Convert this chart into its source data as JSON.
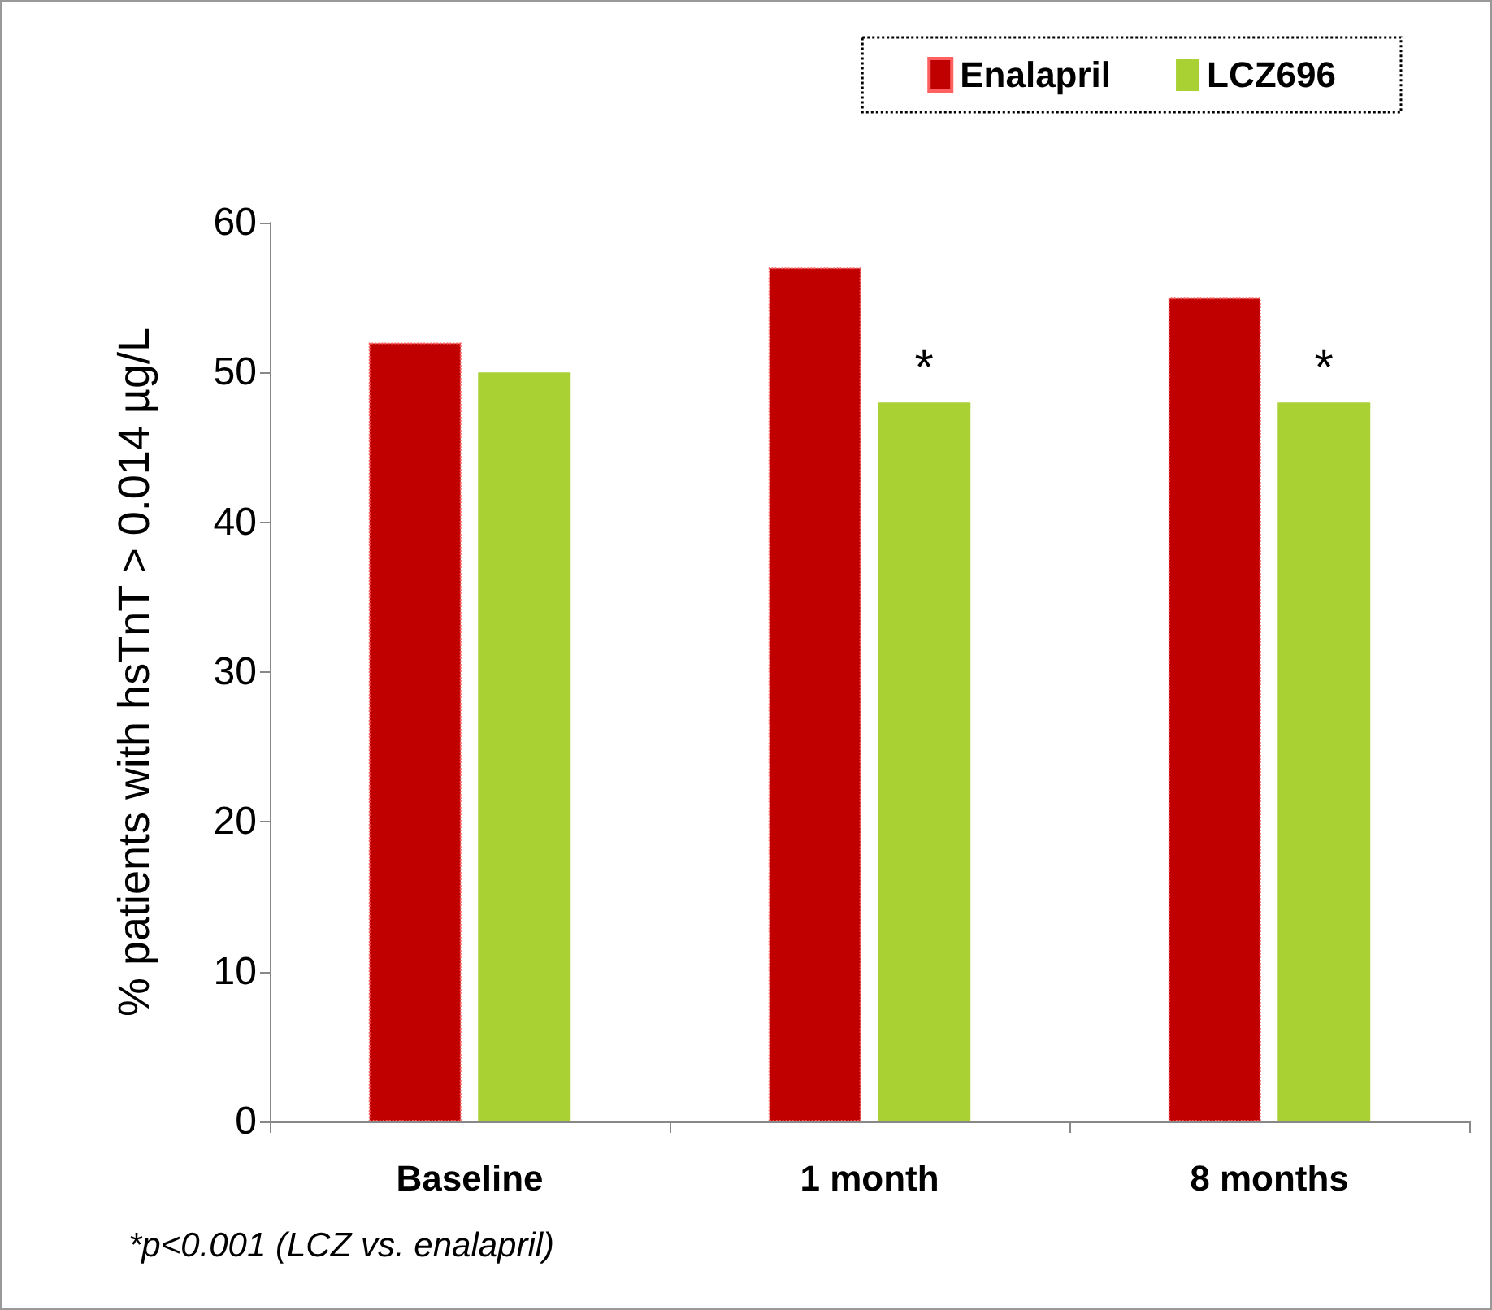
{
  "chart_data": {
    "type": "bar",
    "ylabel": "% patients with hsTnT > 0.014 µg/L",
    "categories": [
      "Baseline",
      "1 month",
      "8 months"
    ],
    "series": [
      {
        "name": "Enalapril",
        "color": "#c00000",
        "values": [
          52,
          57,
          55
        ]
      },
      {
        "name": "LCZ696",
        "color": "#a9d134",
        "values": [
          50,
          48,
          48
        ],
        "value_labels": [
          null,
          "*",
          "*"
        ]
      }
    ],
    "ylim": [
      0,
      60
    ],
    "yticks": [
      0,
      10,
      20,
      30,
      40,
      50,
      60
    ],
    "grid": false,
    "legend": "top right",
    "annotations": [
      "*p<0.001 (LCZ vs. enalapril)"
    ]
  }
}
